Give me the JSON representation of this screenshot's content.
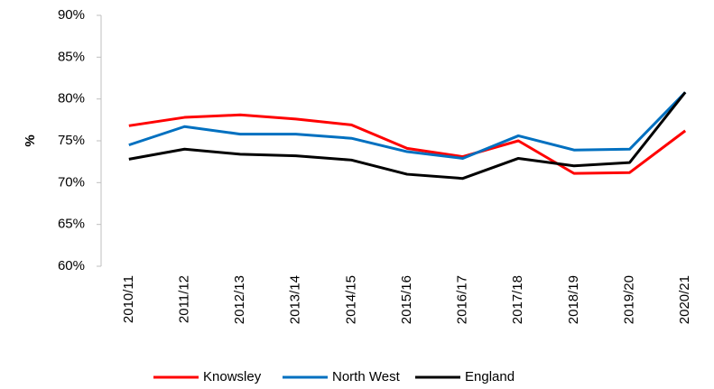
{
  "chart_data": {
    "type": "line",
    "y_label": "%",
    "categories": [
      "2010/11",
      "2011/12",
      "2012/13",
      "2013/14",
      "2014/15",
      "2015/16",
      "2016/17",
      "2017/18",
      "2018/19",
      "2019/20",
      "2020/21"
    ],
    "series": [
      {
        "name": "Knowsley",
        "color": "#ff0000",
        "values": [
          76.8,
          77.8,
          78.1,
          77.6,
          76.9,
          74.1,
          73.1,
          75.0,
          71.1,
          71.2,
          76.2
        ]
      },
      {
        "name": "North West",
        "color": "#0070c0",
        "values": [
          74.5,
          76.7,
          75.8,
          75.8,
          75.3,
          73.7,
          72.9,
          75.6,
          73.9,
          74.0,
          80.8
        ]
      },
      {
        "name": "England",
        "color": "#000000",
        "values": [
          72.8,
          74.0,
          73.4,
          73.2,
          72.7,
          71.0,
          70.5,
          72.9,
          72.0,
          72.4,
          80.8
        ]
      }
    ],
    "ylim": [
      60,
      90
    ],
    "yticks": [
      {
        "value": 60,
        "label": "60%"
      },
      {
        "value": 65,
        "label": "65%"
      },
      {
        "value": 70,
        "label": "70%"
      },
      {
        "value": 75,
        "label": "75%"
      },
      {
        "value": 80,
        "label": "80%"
      },
      {
        "value": 85,
        "label": "85%"
      },
      {
        "value": 90,
        "label": "90%"
      }
    ],
    "legend": "bottom"
  }
}
